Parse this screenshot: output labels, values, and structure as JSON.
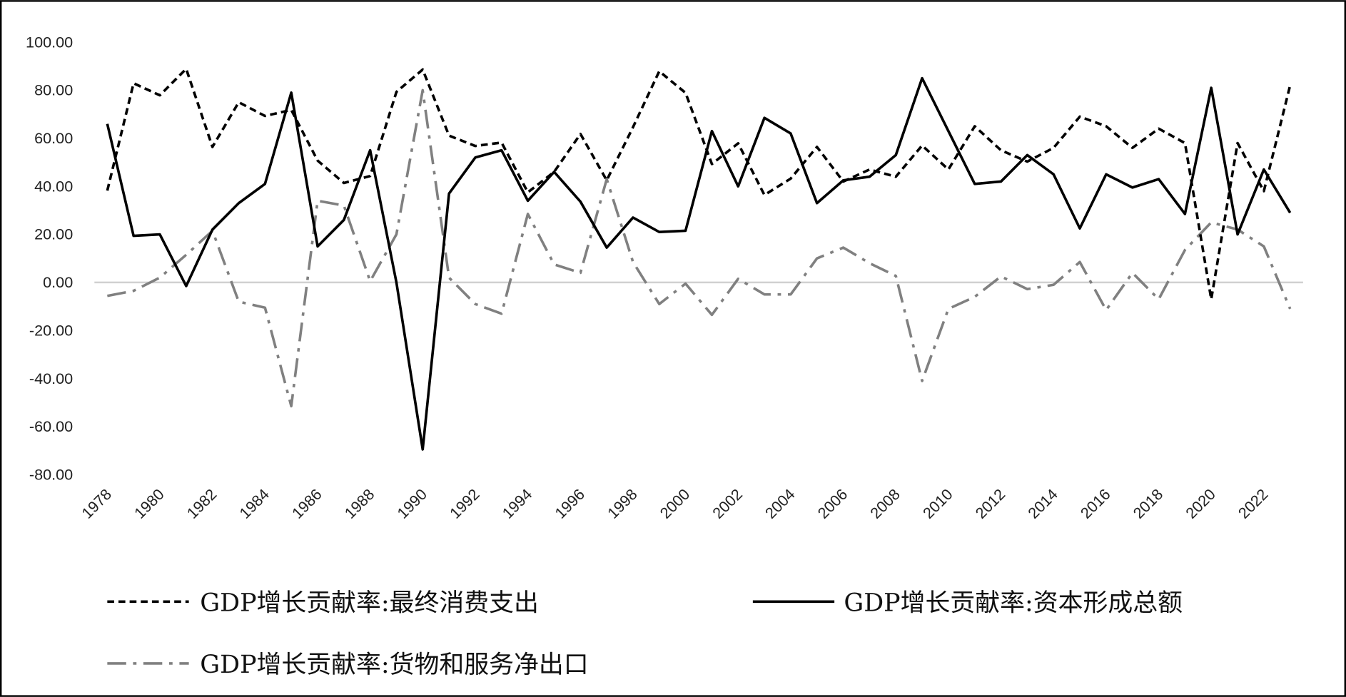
{
  "chart_data": {
    "type": "line",
    "title": "",
    "xlabel": "",
    "ylabel": "",
    "ylim": [
      -80,
      100
    ],
    "yticks": [
      "100.00",
      "80.00",
      "60.00",
      "40.00",
      "20.00",
      "0.00",
      "-20.00",
      "-40.00",
      "-60.00",
      "-80.00"
    ],
    "ytick_values": [
      100,
      80,
      60,
      40,
      20,
      0,
      -20,
      -40,
      -60,
      -80
    ],
    "xticks": [
      "1978",
      "1980",
      "1982",
      "1984",
      "1986",
      "1988",
      "1990",
      "1992",
      "1994",
      "1996",
      "1998",
      "2000",
      "2002",
      "2004",
      "2006",
      "2008",
      "2010",
      "2012",
      "2014",
      "2016",
      "2018",
      "2020",
      "2022"
    ],
    "x": [
      1978,
      1979,
      1980,
      1981,
      1982,
      1983,
      1984,
      1985,
      1986,
      1987,
      1988,
      1989,
      1990,
      1991,
      1992,
      1993,
      1994,
      1995,
      1996,
      1997,
      1998,
      1999,
      2000,
      2001,
      2002,
      2003,
      2004,
      2005,
      2006,
      2007,
      2008,
      2009,
      2010,
      2011,
      2012,
      2013,
      2014,
      2015,
      2016,
      2017,
      2018,
      2019,
      2020,
      2021,
      2022,
      2023
    ],
    "grid": false,
    "legend_position": "bottom",
    "series": [
      {
        "name": "GDP增长贡献率:最终消费支出",
        "style": "dashed",
        "color": "#000000",
        "values": [
          38.2,
          82.9,
          77.9,
          88.9,
          56.4,
          75.0,
          69.3,
          71.8,
          50.7,
          41.4,
          44.3,
          79.3,
          88.6,
          61.1,
          56.8,
          58.2,
          37.5,
          46.0,
          61.8,
          42.5,
          64.6,
          87.9,
          78.9,
          49.3,
          57.9,
          36.4,
          43.2,
          56.4,
          42.0,
          47.0,
          44.0,
          57.0,
          47.0,
          65.0,
          55.0,
          50.3,
          56.0,
          69.0,
          65.0,
          56.0,
          64.0,
          58.0,
          -7.0,
          58.0,
          38.0,
          82.0
        ]
      },
      {
        "name": "GDP增长贡献率:资本形成总额",
        "style": "solid",
        "color": "#000000",
        "values": [
          66.0,
          19.4,
          20.0,
          -1.5,
          22.0,
          33.0,
          41.0,
          79.0,
          15.0,
          26.0,
          55.0,
          0.0,
          -69.5,
          37.0,
          52.0,
          55.0,
          34.0,
          46.0,
          33.6,
          14.5,
          27.0,
          21.0,
          21.5,
          63.0,
          40.0,
          68.5,
          62.0,
          33.0,
          42.5,
          44.0,
          53.0,
          85.0,
          63.0,
          41.0,
          42.0,
          53.0,
          45.0,
          22.5,
          45.0,
          39.5,
          43.0,
          28.5,
          81.0,
          20.0,
          47.0,
          29.0
        ]
      },
      {
        "name": "GDP增长贡献率:货物和服务净出口",
        "style": "dashdot",
        "color": "#808080",
        "values": [
          -5.6,
          -3.5,
          2.0,
          11.5,
          21.5,
          -8.0,
          -10.5,
          -51.5,
          34.0,
          32.0,
          0.5,
          20.0,
          80.0,
          2.0,
          -9.0,
          -13.0,
          28.5,
          7.5,
          4.0,
          43.0,
          8.5,
          -9.0,
          -0.5,
          -13.5,
          1.5,
          -5.0,
          -5.0,
          10.0,
          14.5,
          8.0,
          2.7,
          -41.0,
          -11.0,
          -6.0,
          2.5,
          -2.8,
          -1.0,
          8.5,
          -11.5,
          4.0,
          -7.0,
          13.5,
          25.0,
          22.0,
          15.0,
          -11.0
        ]
      }
    ]
  }
}
